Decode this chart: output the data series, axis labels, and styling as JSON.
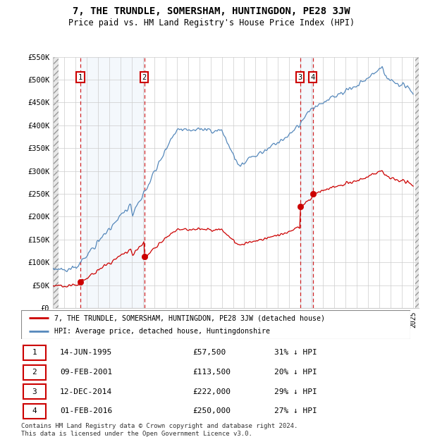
{
  "title": "7, THE TRUNDLE, SOMERSHAM, HUNTINGDON, PE28 3JW",
  "subtitle": "Price paid vs. HM Land Registry's House Price Index (HPI)",
  "ylim": [
    0,
    550000
  ],
  "yticks": [
    0,
    50000,
    100000,
    150000,
    200000,
    250000,
    300000,
    350000,
    400000,
    450000,
    500000,
    550000
  ],
  "ytick_labels": [
    "£0",
    "£50K",
    "£100K",
    "£150K",
    "£200K",
    "£250K",
    "£300K",
    "£350K",
    "£400K",
    "£450K",
    "£500K",
    "£550K"
  ],
  "transaction_color": "#cc0000",
  "hpi_color": "#5588bb",
  "transactions": [
    {
      "date": 1995.45,
      "price": 57500,
      "label": "1"
    },
    {
      "date": 2001.11,
      "price": 113500,
      "label": "2"
    },
    {
      "date": 2014.95,
      "price": 222000,
      "label": "3"
    },
    {
      "date": 2016.08,
      "price": 250000,
      "label": "4"
    }
  ],
  "transaction_table": [
    {
      "num": "1",
      "date": "14-JUN-1995",
      "price": "£57,500",
      "note": "31% ↓ HPI"
    },
    {
      "num": "2",
      "date": "09-FEB-2001",
      "price": "£113,500",
      "note": "20% ↓ HPI"
    },
    {
      "num": "3",
      "date": "12-DEC-2014",
      "price": "£222,000",
      "note": "29% ↓ HPI"
    },
    {
      "num": "4",
      "date": "01-FEB-2016",
      "price": "£250,000",
      "note": "27% ↓ HPI"
    }
  ],
  "legend_property": "7, THE TRUNDLE, SOMERSHAM, HUNTINGDON, PE28 3JW (detached house)",
  "legend_hpi": "HPI: Average price, detached house, Huntingdonshire",
  "footer": "Contains HM Land Registry data © Crown copyright and database right 2024.\nThis data is licensed under the Open Government Licence v3.0.",
  "xmin": 1993,
  "xmax": 2025.5,
  "hpi_start_year": 1993.0,
  "hpi_end_year": 2025.0
}
